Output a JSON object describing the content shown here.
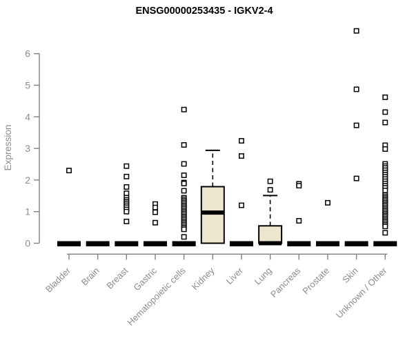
{
  "colors": {
    "box_fill": "#EDE6CE",
    "box_stroke": "#000000",
    "median": "#000000",
    "axis_line": "#7F7F7F",
    "tick_label": "#8C8C8C",
    "title": "#000000",
    "outlier_fill": "#FFFFFF",
    "outlier_stroke": "#000000"
  },
  "chart_data": {
    "type": "boxplot",
    "title": "ENSG00000253435 - IGKV2-4",
    "ylabel": "Expression",
    "ylim": [
      0,
      6.9
    ],
    "y_ticks": [
      0,
      1,
      2,
      3,
      4,
      5,
      6
    ],
    "grid": "off",
    "legend": "none",
    "categories": [
      "Bladder",
      "Brain",
      "Breast",
      "Gastric",
      "Hematopoietic cells",
      "Kidney",
      "Liver",
      "Lung",
      "Pancreas",
      "Prostate",
      "Skin",
      "Unknown / Other"
    ],
    "series": [
      {
        "name": "Bladder",
        "q1": 0,
        "median": 0,
        "q3": 0,
        "whisker_low": 0,
        "whisker_high": 0,
        "outliers": [
          2.3
        ]
      },
      {
        "name": "Brain",
        "q1": 0,
        "median": 0,
        "q3": 0,
        "whisker_low": 0,
        "whisker_high": 0,
        "outliers": []
      },
      {
        "name": "Breast",
        "q1": 0,
        "median": 0,
        "q3": 0,
        "whisker_low": 0,
        "whisker_high": 0,
        "outliers": [
          2.44,
          2.11,
          1.78,
          1.58,
          1.44,
          1.37,
          1.31,
          1.26,
          1.2,
          1.14,
          1.07,
          1.0,
          0.69
        ]
      },
      {
        "name": "Gastric",
        "q1": 0,
        "median": 0,
        "q3": 0,
        "whisker_low": 0,
        "whisker_high": 0,
        "outliers": [
          1.24,
          1.13,
          0.98,
          0.65
        ]
      },
      {
        "name": "Hematopoietic cells",
        "q1": 0,
        "median": 0,
        "q3": 0,
        "whisker_low": 0,
        "whisker_high": 0,
        "outliers": [
          4.23,
          3.11,
          2.51,
          2.15,
          1.92,
          1.89,
          1.66,
          1.44,
          1.39,
          1.34,
          1.29,
          1.24,
          1.19,
          1.14,
          1.09,
          1.04,
          0.99,
          0.94,
          0.89,
          0.84,
          0.79,
          0.74,
          0.69,
          0.64,
          0.59,
          0.54,
          0.49,
          0.44,
          0.2
        ]
      },
      {
        "name": "Kidney",
        "q1": 0,
        "median": 0.97,
        "q3": 1.79,
        "whisker_low": 0,
        "whisker_high": 2.94,
        "outliers": []
      },
      {
        "name": "Liver",
        "q1": 0,
        "median": 0,
        "q3": 0,
        "whisker_low": 0,
        "whisker_high": 0,
        "outliers": [
          3.24,
          2.76,
          1.2
        ]
      },
      {
        "name": "Lung",
        "q1": 0,
        "median": 0,
        "q3": 0.55,
        "whisker_low": 0,
        "whisker_high": 1.51,
        "outliers": [
          1.96,
          1.69
        ]
      },
      {
        "name": "Pancreas",
        "q1": 0,
        "median": 0,
        "q3": 0,
        "whisker_low": 0,
        "whisker_high": 0,
        "outliers": [
          1.88,
          1.82,
          0.71
        ]
      },
      {
        "name": "Prostate",
        "q1": 0,
        "median": 0,
        "q3": 0,
        "whisker_low": 0,
        "whisker_high": 0,
        "outliers": [
          1.28
        ]
      },
      {
        "name": "Skin",
        "q1": 0,
        "median": 0,
        "q3": 0,
        "whisker_low": 0,
        "whisker_high": 0,
        "outliers": [
          6.72,
          4.87,
          3.73,
          2.05
        ]
      },
      {
        "name": "Unknown / Other",
        "q1": 0,
        "median": 0,
        "q3": 0,
        "whisker_low": 0,
        "whisker_high": 0,
        "outliers": [
          4.62,
          4.15,
          3.82,
          3.1,
          2.98,
          2.51,
          2.44,
          2.38,
          2.31,
          2.24,
          2.17,
          2.1,
          2.03,
          1.96,
          1.89,
          1.82,
          1.75,
          1.67,
          1.53,
          1.48,
          1.43,
          1.38,
          1.33,
          1.28,
          1.23,
          1.18,
          1.13,
          1.08,
          1.03,
          0.98,
          0.93,
          0.88,
          0.83,
          0.78,
          0.73,
          0.68,
          0.63,
          0.58,
          0.53,
          0.33
        ]
      }
    ]
  }
}
